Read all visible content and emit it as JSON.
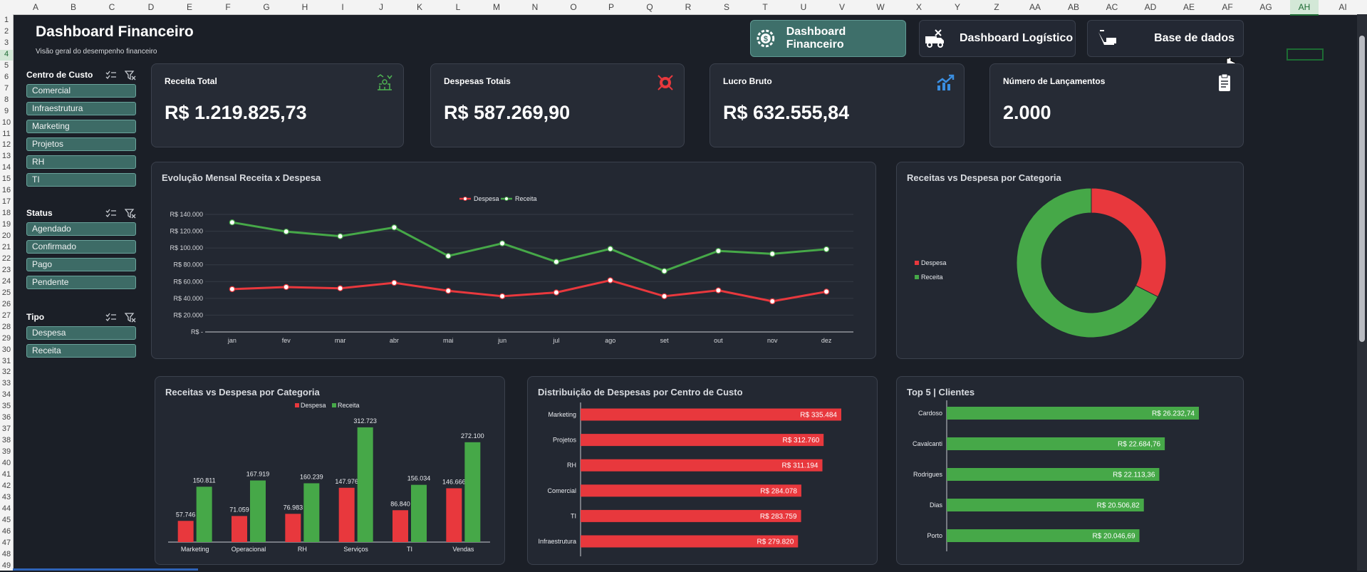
{
  "sheet": {
    "columns": [
      "A",
      "B",
      "C",
      "D",
      "E",
      "F",
      "G",
      "H",
      "I",
      "J",
      "K",
      "L",
      "M",
      "N",
      "O",
      "P",
      "Q",
      "R",
      "S",
      "T",
      "U",
      "V",
      "W",
      "X",
      "Y",
      "Z",
      "AA",
      "AB",
      "AC",
      "AD",
      "AE",
      "AF",
      "AG",
      "AH",
      "AI"
    ],
    "selected_column": "AH",
    "rows": [
      "1",
      "2",
      "3",
      "4",
      "5",
      "6",
      "7",
      "8",
      "9",
      "10",
      "11",
      "12",
      "13",
      "14",
      "15",
      "16",
      "17",
      "18",
      "19",
      "20",
      "21",
      "22",
      "23",
      "24",
      "25",
      "26",
      "27",
      "28",
      "29",
      "30",
      "31",
      "32",
      "33",
      "34",
      "35",
      "36",
      "37",
      "38",
      "39",
      "40",
      "41",
      "42",
      "43",
      "44",
      "45",
      "46",
      "47",
      "48",
      "49"
    ],
    "selected_row": "4"
  },
  "header": {
    "title": "Dashboard Financeiro",
    "subtitle": "Visão geral do desempenho financeiro"
  },
  "nav": {
    "financeiro": "Dashboard Financeiro",
    "logistico": "Dashboard Logístico",
    "base": "Base de dados"
  },
  "slicers": {
    "centro": {
      "title": "Centro de Custo",
      "items": [
        "Comercial",
        "Infraestrutura",
        "Marketing",
        "Projetos",
        "RH",
        "TI"
      ]
    },
    "status": {
      "title": "Status",
      "items": [
        "Agendado",
        "Confirmado",
        "Pago",
        "Pendente"
      ]
    },
    "tipo": {
      "title": "Tipo",
      "items": [
        "Despesa",
        "Receita"
      ]
    }
  },
  "kpis": {
    "receita": {
      "label": "Receita Total",
      "value": "R$ 1.219.825,73",
      "icon": "money-growth-icon"
    },
    "despesas": {
      "label": "Despesas Totais",
      "value": "R$ 587.269,90",
      "icon": "money-loss-icon"
    },
    "lucro": {
      "label": "Lucro Bruto",
      "value": "R$ 632.555,84",
      "icon": "trend-up-icon"
    },
    "lancamentos": {
      "label": "Número de Lançamentos",
      "value": "2.000",
      "icon": "clipboard-icon"
    }
  },
  "colors": {
    "despesa": "#e8383d",
    "receita": "#46a848"
  },
  "chart_data": [
    {
      "id": "monthly",
      "type": "line",
      "title": "Evolução Mensal Receita x Despesa",
      "categories": [
        "jan",
        "fev",
        "mar",
        "abr",
        "mai",
        "jun",
        "jul",
        "ago",
        "set",
        "out",
        "nov",
        "dez"
      ],
      "yticks": [
        "R$ -",
        "R$ 20.000",
        "R$ 40.000",
        "R$ 60.000",
        "R$ 80.000",
        "R$ 100.000",
        "R$ 120.000",
        "R$ 140.000"
      ],
      "ylim": [
        0,
        140000
      ],
      "legend": "top",
      "series": [
        {
          "name": "Despesa",
          "values": [
            51000,
            53500,
            52000,
            58500,
            49000,
            42500,
            47000,
            61500,
            42500,
            49500,
            36500,
            48000
          ]
        },
        {
          "name": "Receita",
          "values": [
            130500,
            119500,
            114000,
            124500,
            90500,
            105500,
            83500,
            99000,
            72500,
            96500,
            93000,
            98500
          ]
        }
      ]
    },
    {
      "id": "donut",
      "type": "pie",
      "title": "Receitas vs Despesa por Categoria",
      "legend": "left",
      "series": [
        {
          "name": "Despesa",
          "value": 587269.9
        },
        {
          "name": "Receita",
          "value": 1219825.73
        }
      ]
    },
    {
      "id": "bycat",
      "type": "bar",
      "title": "Receitas vs Despesa por Categoria",
      "categories": [
        "Marketing",
        "Operacional",
        "RH",
        "Serviços",
        "TI",
        "Vendas"
      ],
      "legend": "top",
      "series": [
        {
          "name": "Despesa",
          "values": [
            57746,
            71059,
            76983,
            147976,
            86840,
            146666
          ],
          "labels": [
            "57.746",
            "71.059",
            "76.983",
            "147.976",
            "86.840",
            "146.666"
          ]
        },
        {
          "name": "Receita",
          "values": [
            150811,
            167919,
            160239,
            312723,
            156034,
            272100
          ],
          "labels": [
            "150.811",
            "167.919",
            "160.239",
            "312.723",
            "156.034",
            "272.100"
          ]
        }
      ]
    },
    {
      "id": "centro",
      "type": "bar",
      "orientation": "horizontal",
      "title": "Distribuição de Despesas por Centro de Custo",
      "categories": [
        "Marketing",
        "Projetos",
        "RH",
        "Comercial",
        "TI",
        "Infraestrutura"
      ],
      "values": [
        335484,
        312760,
        311194,
        284078,
        283759,
        279820
      ],
      "labels": [
        "R$ 335.484",
        "R$ 312.760",
        "R$ 311.194",
        "R$ 284.078",
        "R$ 283.759",
        "R$ 279.820"
      ]
    },
    {
      "id": "top5",
      "type": "bar",
      "orientation": "horizontal",
      "title": "Top 5 | Clientes",
      "categories": [
        "Cardoso",
        "Cavalcanti",
        "Rodrigues",
        "Dias",
        "Porto"
      ],
      "values": [
        26232.74,
        22684.76,
        22113.36,
        20506.82,
        20046.69
      ],
      "labels": [
        "R$ 26.232,74",
        "R$ 22.684,76",
        "R$ 22.113,36",
        "R$ 20.506,82",
        "R$ 20.046,69"
      ]
    }
  ]
}
